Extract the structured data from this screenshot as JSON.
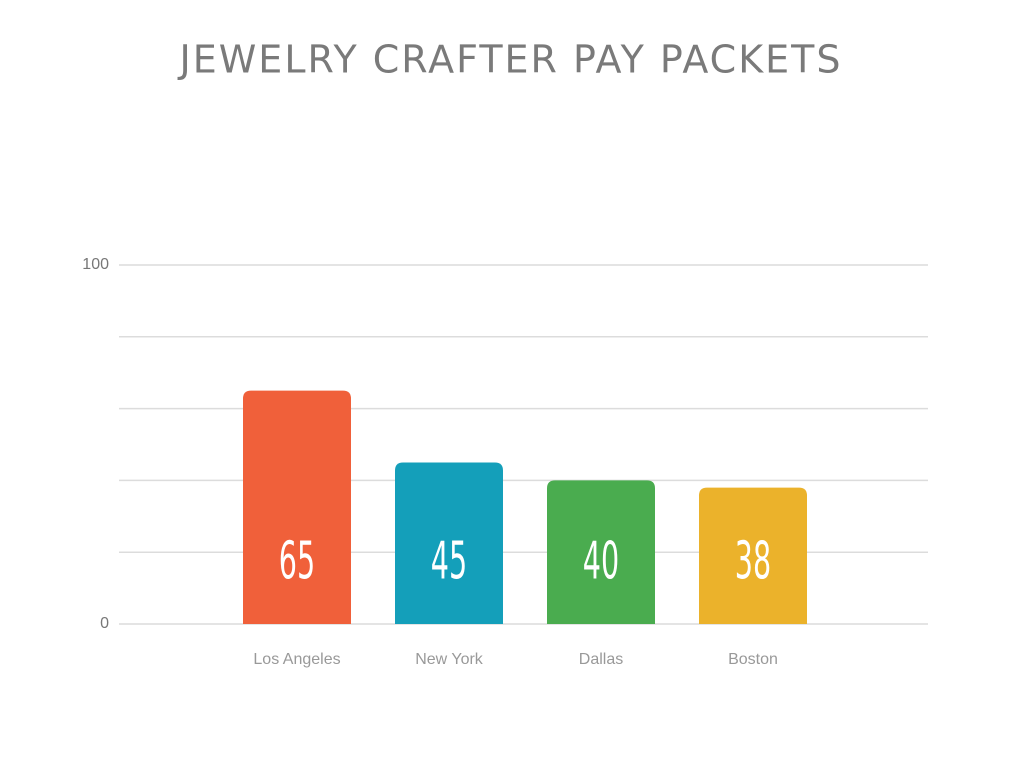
{
  "chart_data": {
    "type": "bar",
    "title": "JEWELRY CRAFTER PAY PACKETS",
    "categories": [
      "Los Angeles",
      "New York",
      "Dallas",
      "Boston"
    ],
    "values": [
      65,
      45,
      40,
      38
    ],
    "colors": [
      "#f0603a",
      "#149fba",
      "#4aac4f",
      "#ebb22b"
    ],
    "ylim": [
      0,
      100
    ],
    "yticks": [
      0,
      100
    ],
    "gridlines": [
      0,
      20,
      40,
      60,
      80,
      100
    ],
    "grid": true
  }
}
